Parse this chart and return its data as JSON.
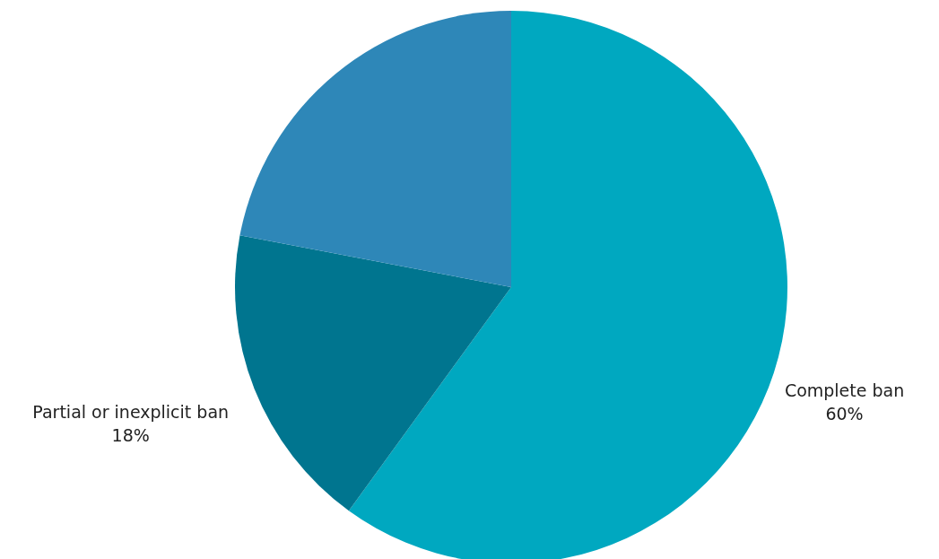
{
  "chart_data": {
    "type": "pie",
    "categories": [
      "Complete ban",
      "Partial or inexplicit ban",
      null
    ],
    "values": [
      60,
      18,
      22
    ],
    "value_labels": [
      "60%",
      "18%",
      null
    ],
    "colors": [
      "#00a8c0",
      "#00758f",
      "#2e87b8"
    ]
  }
}
